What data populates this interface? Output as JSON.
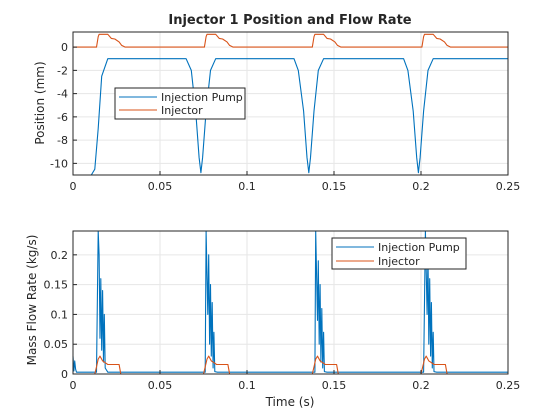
{
  "chart_data": [
    {
      "type": "line",
      "title": "Injector 1 Position and Flow Rate",
      "xlabel": "",
      "ylabel": "Position (mm)",
      "xlim": [
        0,
        0.25
      ],
      "ylim": [
        -11,
        1.3
      ],
      "xticks": [
        0,
        0.05,
        0.1,
        0.15,
        0.2,
        0.25
      ],
      "xtick_labels": [
        "0",
        "0.05",
        "0.1",
        "0.15",
        "0.2",
        "0.25"
      ],
      "yticks": [
        0,
        -2,
        -4,
        -6,
        -8,
        -10
      ],
      "ytick_labels": [
        "0",
        "-2",
        "-4",
        "-6",
        "-8",
        "-10"
      ],
      "grid": true,
      "legend_position": "center-left",
      "series": [
        {
          "name": "Injection Pump",
          "color": "#0072BD",
          "x": [
            0,
            0.0105,
            0.0125,
            0.0145,
            0.0165,
            0.02,
            0.065,
            0.068,
            0.0705,
            0.0725,
            0.0735,
            0.0745,
            0.0765,
            0.079,
            0.082,
            0.127,
            0.1295,
            0.1325,
            0.1345,
            0.1355,
            0.1365,
            0.1385,
            0.141,
            0.144,
            0.19,
            0.1925,
            0.1955,
            0.1975,
            0.1985,
            0.1995,
            0.2015,
            0.204,
            0.207,
            0.25
          ],
          "y": [
            -11,
            -11,
            -10.5,
            -7,
            -2.5,
            -1,
            -1,
            -2,
            -5.5,
            -9.5,
            -10.8,
            -9.5,
            -5.5,
            -2,
            -1,
            -1,
            -2,
            -5.5,
            -9.5,
            -10.8,
            -9.5,
            -5.5,
            -2,
            -1,
            -1,
            -2,
            -5.5,
            -9.5,
            -10.8,
            -9.5,
            -5.5,
            -2,
            -1,
            -1
          ]
        },
        {
          "name": "Injector",
          "color": "#D95319",
          "x": [
            0,
            0.0135,
            0.0145,
            0.015,
            0.02,
            0.022,
            0.024,
            0.0265,
            0.028,
            0.03,
            0.0755,
            0.0765,
            0.077,
            0.082,
            0.084,
            0.086,
            0.0885,
            0.09,
            0.092,
            0.1375,
            0.1385,
            0.139,
            0.144,
            0.146,
            0.148,
            0.1505,
            0.152,
            0.154,
            0.2005,
            0.2015,
            0.202,
            0.207,
            0.209,
            0.211,
            0.2135,
            0.215,
            0.217,
            0.25
          ],
          "y": [
            0,
            0,
            0.9,
            1.1,
            1.1,
            0.75,
            0.7,
            0.45,
            0.15,
            0,
            0,
            0.9,
            1.1,
            1.1,
            0.75,
            0.7,
            0.45,
            0.15,
            0,
            0,
            0.9,
            1.1,
            1.1,
            0.75,
            0.7,
            0.45,
            0.15,
            0,
            0,
            0.9,
            1.1,
            1.1,
            0.75,
            0.7,
            0.45,
            0.15,
            0,
            0
          ]
        }
      ]
    },
    {
      "type": "line",
      "title": "",
      "xlabel": "Time (s)",
      "ylabel": "Mass Flow Rate (kg/s)",
      "xlim": [
        0,
        0.25
      ],
      "ylim": [
        0,
        0.24
      ],
      "xticks": [
        0,
        0.05,
        0.1,
        0.15,
        0.2,
        0.25
      ],
      "xtick_labels": [
        "0",
        "0.05",
        "0.1",
        "0.15",
        "0.2",
        "0.25"
      ],
      "yticks": [
        0,
        0.05,
        0.1,
        0.15,
        0.2
      ],
      "ytick_labels": [
        "0",
        "0.05",
        "0.1",
        "0.15",
        "0.2"
      ],
      "grid": true,
      "legend_position": "top-right",
      "series": [
        {
          "name": "Injection Pump",
          "color": "#0072BD",
          "x": [
            0,
            0.0005,
            0.001,
            0.0015,
            0.002,
            0.0135,
            0.0145,
            0.015,
            0.0155,
            0.016,
            0.0165,
            0.017,
            0.0175,
            0.018,
            0.0185,
            0.02,
            0.076,
            0.0765,
            0.0775,
            0.078,
            0.0785,
            0.079,
            0.0795,
            0.08,
            0.0805,
            0.081,
            0.0815,
            0.083,
            0.139,
            0.1395,
            0.1405,
            0.141,
            0.1415,
            0.142,
            0.1425,
            0.143,
            0.1435,
            0.144,
            0.1445,
            0.146,
            0.2015,
            0.2025,
            0.2035,
            0.204,
            0.2045,
            0.205,
            0.2055,
            0.206,
            0.2065,
            0.207,
            0.2075,
            0.209,
            0.25
          ],
          "y": [
            0.03,
            0.005,
            0.022,
            0.008,
            0.003,
            0.003,
            0.24,
            0.2,
            0.06,
            0.16,
            0.04,
            0.14,
            0.02,
            0.1,
            0.01,
            0.003,
            0.003,
            0.24,
            0.1,
            0.2,
            0.05,
            0.15,
            0.03,
            0.12,
            0.01,
            0.07,
            0.004,
            0.003,
            0.003,
            0.24,
            0.09,
            0.19,
            0.05,
            0.15,
            0.02,
            0.11,
            0.01,
            0.07,
            0.004,
            0.003,
            0.003,
            0.24,
            0.1,
            0.2,
            0.05,
            0.16,
            0.03,
            0.12,
            0.01,
            0.07,
            0.004,
            0.003,
            0.003
          ]
        },
        {
          "name": "Injector",
          "color": "#D95319",
          "x": [
            0,
            0.0125,
            0.0135,
            0.0145,
            0.0155,
            0.017,
            0.018,
            0.02,
            0.022,
            0.024,
            0.0265,
            0.0275,
            0.075,
            0.076,
            0.077,
            0.078,
            0.0795,
            0.0805,
            0.0825,
            0.0845,
            0.0865,
            0.089,
            0.09,
            0.1375,
            0.1385,
            0.1395,
            0.1405,
            0.142,
            0.143,
            0.145,
            0.147,
            0.149,
            0.1515,
            0.1525,
            0.2,
            0.201,
            0.202,
            0.203,
            0.2045,
            0.2055,
            0.2075,
            0.2095,
            0.2115,
            0.214,
            0.215,
            0.25
          ],
          "y": [
            0,
            0,
            0.012,
            0.025,
            0.03,
            0.022,
            0.02,
            0.016,
            0.016,
            0.016,
            0.016,
            0,
            0,
            0.012,
            0.025,
            0.03,
            0.022,
            0.02,
            0.016,
            0.016,
            0.016,
            0.016,
            0,
            0,
            0.012,
            0.025,
            0.03,
            0.022,
            0.02,
            0.016,
            0.016,
            0.016,
            0.016,
            0,
            0,
            0.012,
            0.025,
            0.03,
            0.022,
            0.02,
            0.016,
            0.016,
            0.016,
            0.016,
            0,
            0
          ]
        }
      ]
    }
  ]
}
